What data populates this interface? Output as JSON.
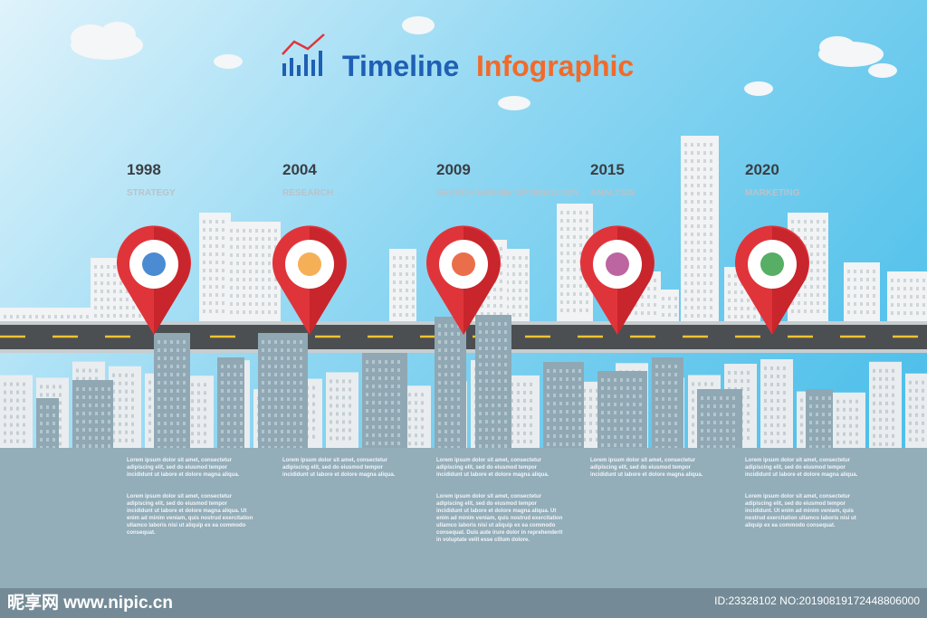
{
  "header": {
    "title_part1": "Timeline",
    "title_part2": "Infographic"
  },
  "milestones": [
    {
      "year": "1998",
      "label": "STRATEGY",
      "text1": "Lorem ipsum dolor sit amet, consectetur adipiscing elit, sed do eiusmod tempor incididunt ut labore et dolore magna aliqua.",
      "text2": "Lorem ipsum dolor sit amet, consectetur adipiscing elit, sed do eiusmod tempor incididunt ut labore et dolore magna aliqua. Ut enim ad minim veniam, quis nostrud exercitation ullamco laboris nisi ut aliquip ex ea commodo consequat."
    },
    {
      "year": "2004",
      "label": "RESEARCH",
      "text1": "Lorem ipsum dolor sit amet, consectetur adipiscing elit, sed do eiusmod tempor incididunt ut labore et dolore magna aliqua.",
      "text2": ""
    },
    {
      "year": "2009",
      "label": "SEARCH ENGINE OPTIMIZATION",
      "text1": "Lorem ipsum dolor sit amet, consectetur adipiscing elit, sed do eiusmod tempor incididunt ut labore et dolore magna aliqua.",
      "text2": "Lorem ipsum dolor sit amet, consectetur adipiscing elit, sed do eiusmod tempor incididunt ut labore et dolore magna aliqua. Ut enim ad minim veniam, quis nostrud exercitation ullamco laboris nisi ut aliquip ex ea commodo consequat. Duis aute irure dolor in reprehenderit in voluptate velit esse cillum dolore."
    },
    {
      "year": "2015",
      "label": "ANALYSIS",
      "text1": "Lorem ipsum dolor sit amet, consectetur adipiscing elit, sed do eiusmod tempor incididunt ut labore et dolore magna aliqua.",
      "text2": ""
    },
    {
      "year": "2020",
      "label": "MARKETING",
      "text1": "Lorem ipsum dolor sit amet, consectetur adipiscing elit, sed do eiusmod tempor incididunt ut labore et dolore magna aliqua.",
      "text2": "Lorem ipsum dolor sit amet, consectetur adipiscing elit, sed do eiusmod tempor incididunt. Ut enim ad minim veniam, quis nostrud exercitation ullamco laboris nisi ut aliquip ex ea commodo consequat."
    }
  ],
  "watermark": {
    "site": "昵享网 www.nipic.cn",
    "id": "ID:23328102 NO:20190819172448806000"
  }
}
